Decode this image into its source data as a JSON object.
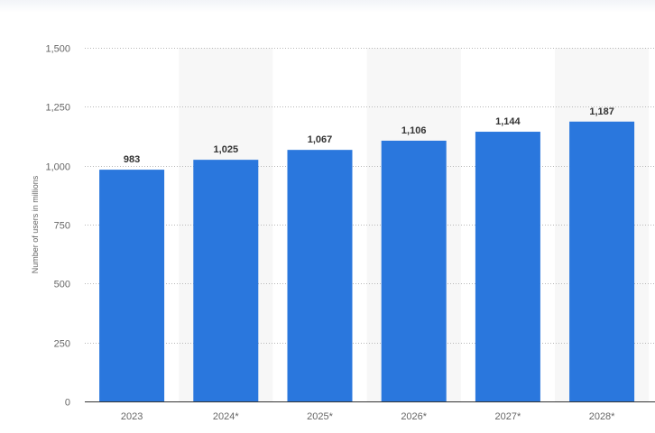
{
  "chart_data": {
    "type": "bar",
    "categories": [
      "2023",
      "2024*",
      "2025*",
      "2026*",
      "2027*",
      "2028*"
    ],
    "values": [
      983,
      1025,
      1067,
      1106,
      1144,
      1187
    ],
    "value_labels": [
      "983",
      "1,025",
      "1,067",
      "1,106",
      "1,144",
      "1,187"
    ],
    "ylabel": "Number of users in millions",
    "ylim": [
      0,
      1500
    ],
    "yticks": [
      0,
      250,
      500,
      750,
      1000,
      1250,
      1500
    ],
    "ytick_labels": [
      "0",
      "250",
      "500",
      "750",
      "1,000",
      "1,250",
      "1,500"
    ],
    "grid": true,
    "bar_color": "#2a77dd",
    "alt_band_color": "#f7f7f7"
  }
}
